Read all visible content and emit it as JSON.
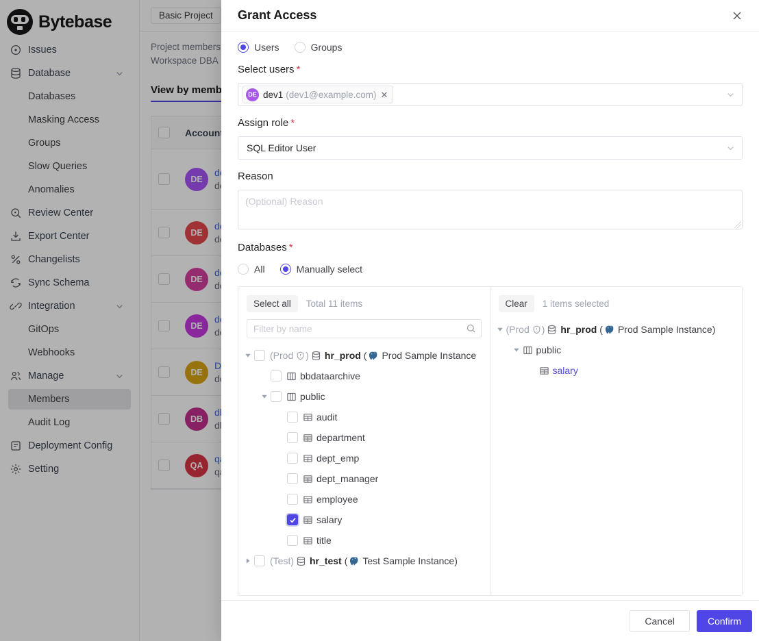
{
  "colors": {
    "accent": "#4f46e5",
    "required_red": "#dc3d43",
    "link_blue": "#3d6ee8",
    "pg_blue": "#336791",
    "tag_avatar_purple": "#a857e8"
  },
  "sidebar": {
    "logo_text": "Bytebase",
    "items": [
      {
        "label": "Issues",
        "icon": "issues-icon",
        "level": 0
      },
      {
        "label": "Database",
        "icon": "database-icon",
        "level": 0,
        "chevron": true
      },
      {
        "label": "Databases",
        "level": 1
      },
      {
        "label": "Masking Access",
        "level": 1
      },
      {
        "label": "Groups",
        "level": 1
      },
      {
        "label": "Slow Queries",
        "level": 1
      },
      {
        "label": "Anomalies",
        "level": 1
      },
      {
        "label": "Review Center",
        "icon": "review-center-icon",
        "level": 0
      },
      {
        "label": "Export Center",
        "icon": "export-center-icon",
        "level": 0
      },
      {
        "label": "Changelists",
        "icon": "changelists-icon",
        "level": 0
      },
      {
        "label": "Sync Schema",
        "icon": "sync-schema-icon",
        "level": 0
      },
      {
        "label": "Integration",
        "icon": "integration-icon",
        "level": 0,
        "chevron": true
      },
      {
        "label": "GitOps",
        "level": 1
      },
      {
        "label": "Webhooks",
        "level": 1
      },
      {
        "label": "Manage",
        "icon": "manage-icon",
        "level": 0,
        "chevron": true
      },
      {
        "label": "Members",
        "level": 1,
        "active": true
      },
      {
        "label": "Audit Log",
        "level": 1
      },
      {
        "label": "Deployment Config",
        "icon": "deployment-config-icon",
        "level": 0
      },
      {
        "label": "Setting",
        "icon": "setting-icon",
        "level": 0
      }
    ]
  },
  "page": {
    "project_chip": "Basic Project",
    "desc_line1": "Project members",
    "desc_line2": "Workspace DBA",
    "view_tab": "View by members",
    "table": {
      "account_header": "Account",
      "rows": [
        {
          "initials": "DE",
          "color": "#a855f7",
          "link": "dev",
          "sub": "dev",
          "tall": true
        },
        {
          "initials": "DE",
          "color": "#e5484d",
          "link": "dev",
          "sub": "dev"
        },
        {
          "initials": "DE",
          "color": "#d6409f",
          "link": "dev",
          "sub": "dev"
        },
        {
          "initials": "DE",
          "color": "#c838e0",
          "link": "dev",
          "sub": "dev"
        },
        {
          "initials": "DE",
          "color": "#d9a514",
          "link": "Dev",
          "sub": "dev"
        },
        {
          "initials": "DB",
          "color": "#c2308f",
          "link": "dba",
          "sub": "dba"
        },
        {
          "initials": "QA",
          "color": "#d93644",
          "link": "qa",
          "sub": "qa"
        }
      ]
    }
  },
  "modal": {
    "title": "Grant Access",
    "member_type": {
      "users_label": "Users",
      "groups_label": "Groups"
    },
    "required_marker": "*",
    "select_users": {
      "label": "Select users",
      "tag": {
        "initials": "DE",
        "name": "dev1",
        "email": "(dev1@example.com)",
        "remove": "✕"
      }
    },
    "assign_role": {
      "label": "Assign role",
      "value": "SQL Editor User"
    },
    "reason": {
      "label": "Reason",
      "placeholder": "(Optional) Reason"
    },
    "databases": {
      "label": "Databases",
      "all_label": "All",
      "manual_label": "Manually select"
    },
    "selector": {
      "select_all": "Select all",
      "total": "Total 11 items",
      "filter_placeholder": "Filter by name",
      "clear": "Clear",
      "selected_count": "1 items selected",
      "tree": [
        {
          "level": 0,
          "caret": "down",
          "checkbox": "unchecked",
          "env": "(Prod",
          "shield": true,
          "envClose": ")",
          "dbicon": true,
          "name": "hr_prod",
          "bold": true,
          "open": "(",
          "pg": true,
          "suffix": "Prod Sample Instance"
        },
        {
          "level": 1,
          "checkbox": "unchecked",
          "icon": "schema",
          "name": "bbdataarchive"
        },
        {
          "level": 1,
          "caret": "down",
          "checkbox": "unchecked",
          "icon": "schema",
          "name": "public"
        },
        {
          "level": 2,
          "checkbox": "unchecked",
          "icon": "table",
          "name": "audit"
        },
        {
          "level": 2,
          "checkbox": "unchecked",
          "icon": "table",
          "name": "department"
        },
        {
          "level": 2,
          "checkbox": "unchecked",
          "icon": "table",
          "name": "dept_emp"
        },
        {
          "level": 2,
          "checkbox": "unchecked",
          "icon": "table",
          "name": "dept_manager"
        },
        {
          "level": 2,
          "checkbox": "unchecked",
          "icon": "table",
          "name": "employee"
        },
        {
          "level": 2,
          "checkbox": "checked",
          "icon": "table",
          "name": "salary"
        },
        {
          "level": 2,
          "checkbox": "unchecked",
          "icon": "table",
          "name": "title"
        },
        {
          "level": 0,
          "caret": "right",
          "checkbox": "unchecked",
          "env": "(Test)",
          "dbicon": true,
          "name": "hr_test",
          "bold": true,
          "open": "(",
          "pg": true,
          "suffix": "Test Sample Instance)"
        }
      ],
      "selected_tree": [
        {
          "level": 0,
          "caret": "down",
          "env": "(Prod",
          "shield": true,
          "envClose": ")",
          "dbicon": true,
          "name": "hr_prod",
          "bold": true,
          "open": "(",
          "pg": true,
          "suffix": "Prod Sample Instance)"
        },
        {
          "level": 1,
          "caret": "down",
          "icon": "schema",
          "name": "public"
        },
        {
          "level": 2,
          "icon": "table",
          "name": "salary",
          "accent": true
        }
      ]
    },
    "footer": {
      "cancel": "Cancel",
      "confirm": "Confirm"
    }
  }
}
